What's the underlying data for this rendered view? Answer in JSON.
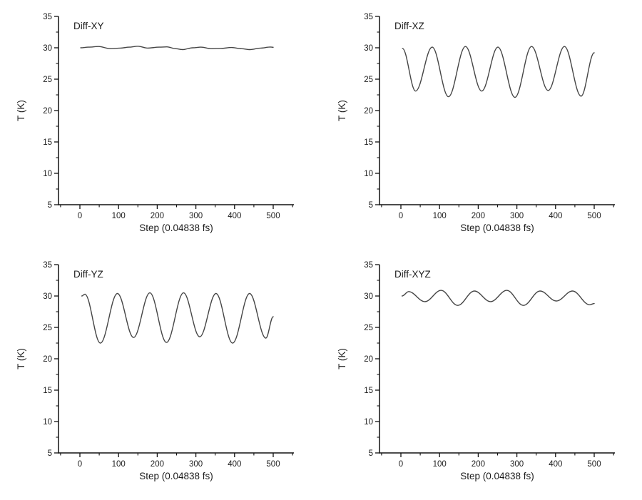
{
  "page": {
    "background": "#ffffff",
    "text_color": "#1c1c1c",
    "axis_color": "#111111"
  },
  "chart_data": [
    {
      "type": "line",
      "title": "Diff-XY",
      "xlabel": "Step (0.04838 fs)",
      "ylabel": "T (K)",
      "xlim": [
        -55,
        555
      ],
      "ylim": [
        5,
        35
      ],
      "x_ticks": [
        0,
        100,
        200,
        300,
        400,
        500
      ],
      "x_minor_ticks": [
        -50,
        50,
        150,
        250,
        350,
        450,
        550
      ],
      "y_ticks": [
        5,
        10,
        15,
        20,
        25,
        30,
        35
      ],
      "y_minor_ticks": [
        7.5,
        12.5,
        17.5,
        22.5,
        27.5,
        32.5
      ],
      "grid": false,
      "legend": false,
      "line_color": "#454545",
      "series": [
        {
          "name": "temperature",
          "points": [
            [
              2,
              30.0
            ],
            [
              22,
              30.1
            ],
            [
              48,
              30.2
            ],
            [
              80,
              29.85
            ],
            [
              105,
              29.95
            ],
            [
              128,
              30.1
            ],
            [
              150,
              30.25
            ],
            [
              175,
              29.95
            ],
            [
              205,
              30.1
            ],
            [
              225,
              30.15
            ],
            [
              248,
              29.85
            ],
            [
              266,
              29.72
            ],
            [
              292,
              30.0
            ],
            [
              313,
              30.1
            ],
            [
              340,
              29.85
            ],
            [
              365,
              29.9
            ],
            [
              392,
              30.05
            ],
            [
              418,
              29.85
            ],
            [
              440,
              29.72
            ],
            [
              468,
              29.95
            ],
            [
              492,
              30.12
            ],
            [
              500,
              30.08
            ]
          ]
        }
      ]
    },
    {
      "type": "line",
      "title": "Diff-XZ",
      "xlabel": "Step (0.04838 fs)",
      "ylabel": "T (K)",
      "xlim": [
        -55,
        555
      ],
      "ylim": [
        5,
        35
      ],
      "x_ticks": [
        0,
        100,
        200,
        300,
        400,
        500
      ],
      "x_minor_ticks": [
        -50,
        50,
        150,
        250,
        350,
        450,
        550
      ],
      "y_ticks": [
        5,
        10,
        15,
        20,
        25,
        30,
        35
      ],
      "y_minor_ticks": [
        7.5,
        12.5,
        17.5,
        22.5,
        27.5,
        32.5
      ],
      "grid": false,
      "legend": false,
      "line_color": "#454545",
      "series": [
        {
          "name": "temperature",
          "points": [
            [
              4,
              29.9
            ],
            [
              38,
              23.1
            ],
            [
              81,
              30.1
            ],
            [
              123,
              22.2
            ],
            [
              167,
              30.2
            ],
            [
              209,
              23.1
            ],
            [
              251,
              30.1
            ],
            [
              295,
              22.1
            ],
            [
              338,
              30.2
            ],
            [
              381,
              23.2
            ],
            [
              423,
              30.2
            ],
            [
              466,
              22.3
            ],
            [
              500,
              29.2
            ]
          ]
        }
      ]
    },
    {
      "type": "line",
      "title": "Diff-YZ",
      "xlabel": "Step (0.04838 fs)",
      "ylabel": "T (K)",
      "xlim": [
        -55,
        555
      ],
      "ylim": [
        5,
        35
      ],
      "x_ticks": [
        0,
        100,
        200,
        300,
        400,
        500
      ],
      "x_minor_ticks": [
        -50,
        50,
        150,
        250,
        350,
        450,
        550
      ],
      "y_ticks": [
        5,
        10,
        15,
        20,
        25,
        30,
        35
      ],
      "y_minor_ticks": [
        7.5,
        12.5,
        17.5,
        22.5,
        27.5,
        32.5
      ],
      "grid": false,
      "legend": false,
      "line_color": "#454545",
      "series": [
        {
          "name": "temperature",
          "points": [
            [
              5,
              30.0
            ],
            [
              13,
              30.3
            ],
            [
              53,
              22.5
            ],
            [
              97,
              30.4
            ],
            [
              139,
              23.4
            ],
            [
              181,
              30.5
            ],
            [
              224,
              22.6
            ],
            [
              268,
              30.5
            ],
            [
              310,
              23.5
            ],
            [
              352,
              30.4
            ],
            [
              395,
              22.5
            ],
            [
              439,
              30.4
            ],
            [
              481,
              23.3
            ],
            [
              500,
              26.7
            ]
          ]
        }
      ]
    },
    {
      "type": "line",
      "title": "Diff-XYZ",
      "xlabel": "Step (0.04838 fs)",
      "ylabel": "T (K)",
      "xlim": [
        -55,
        555
      ],
      "ylim": [
        5,
        35
      ],
      "x_ticks": [
        0,
        100,
        200,
        300,
        400,
        500
      ],
      "x_minor_ticks": [
        -50,
        50,
        150,
        250,
        350,
        450,
        550
      ],
      "y_ticks": [
        5,
        10,
        15,
        20,
        25,
        30,
        35
      ],
      "y_minor_ticks": [
        7.5,
        12.5,
        17.5,
        22.5,
        27.5,
        32.5
      ],
      "grid": false,
      "legend": false,
      "line_color": "#454545",
      "series": [
        {
          "name": "temperature",
          "points": [
            [
              3,
              30.0
            ],
            [
              20,
              30.7
            ],
            [
              62,
              29.1
            ],
            [
              104,
              30.9
            ],
            [
              147,
              28.5
            ],
            [
              190,
              30.8
            ],
            [
              232,
              29.1
            ],
            [
              274,
              30.9
            ],
            [
              317,
              28.5
            ],
            [
              360,
              30.8
            ],
            [
              402,
              29.2
            ],
            [
              444,
              30.8
            ],
            [
              488,
              28.6
            ],
            [
              500,
              28.8
            ]
          ]
        }
      ]
    }
  ]
}
